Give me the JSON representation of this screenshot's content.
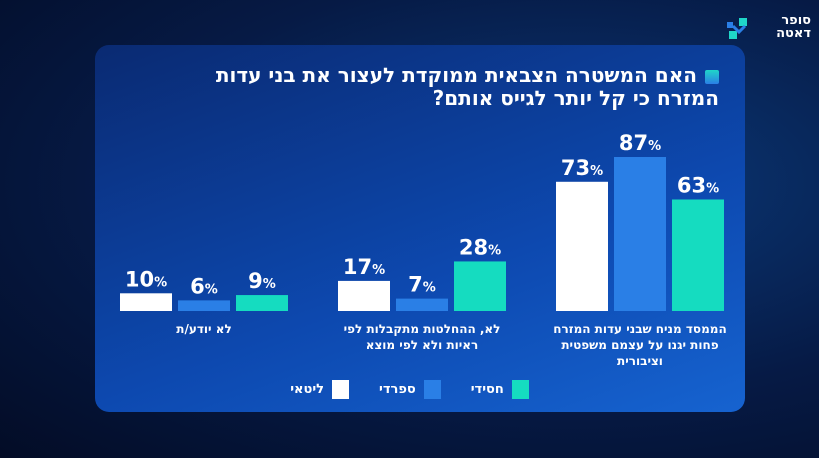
{
  "logo": {
    "line1": "סופר",
    "line2": "דאטה"
  },
  "chart_data": {
    "type": "bar",
    "title": "האם המשטרה הצבאית ממוקדת לעצור את בני עדות המזרח כי קל יותר לגייס אותם?",
    "categories": [
      "הממסד מניח שבני עדות המזרח פחות יגנו על עצמם משפטית וציבורית",
      "לא, ההחלטות מתקבלות לפי ראיות ולא לפי מוצא",
      "לא יודע/ת"
    ],
    "series": [
      {
        "name": "ליטאי",
        "color": "#ffffff",
        "values": [
          73,
          17,
          10
        ]
      },
      {
        "name": "ספרדי",
        "color": "#2a7fe6",
        "values": [
          87,
          7,
          6
        ]
      },
      {
        "name": "חסידי",
        "color": "#15dcc0",
        "values": [
          63,
          28,
          9
        ]
      }
    ],
    "value_suffix": "%",
    "ylim": [
      0,
      100
    ],
    "grid": false,
    "legend": "bottom"
  }
}
